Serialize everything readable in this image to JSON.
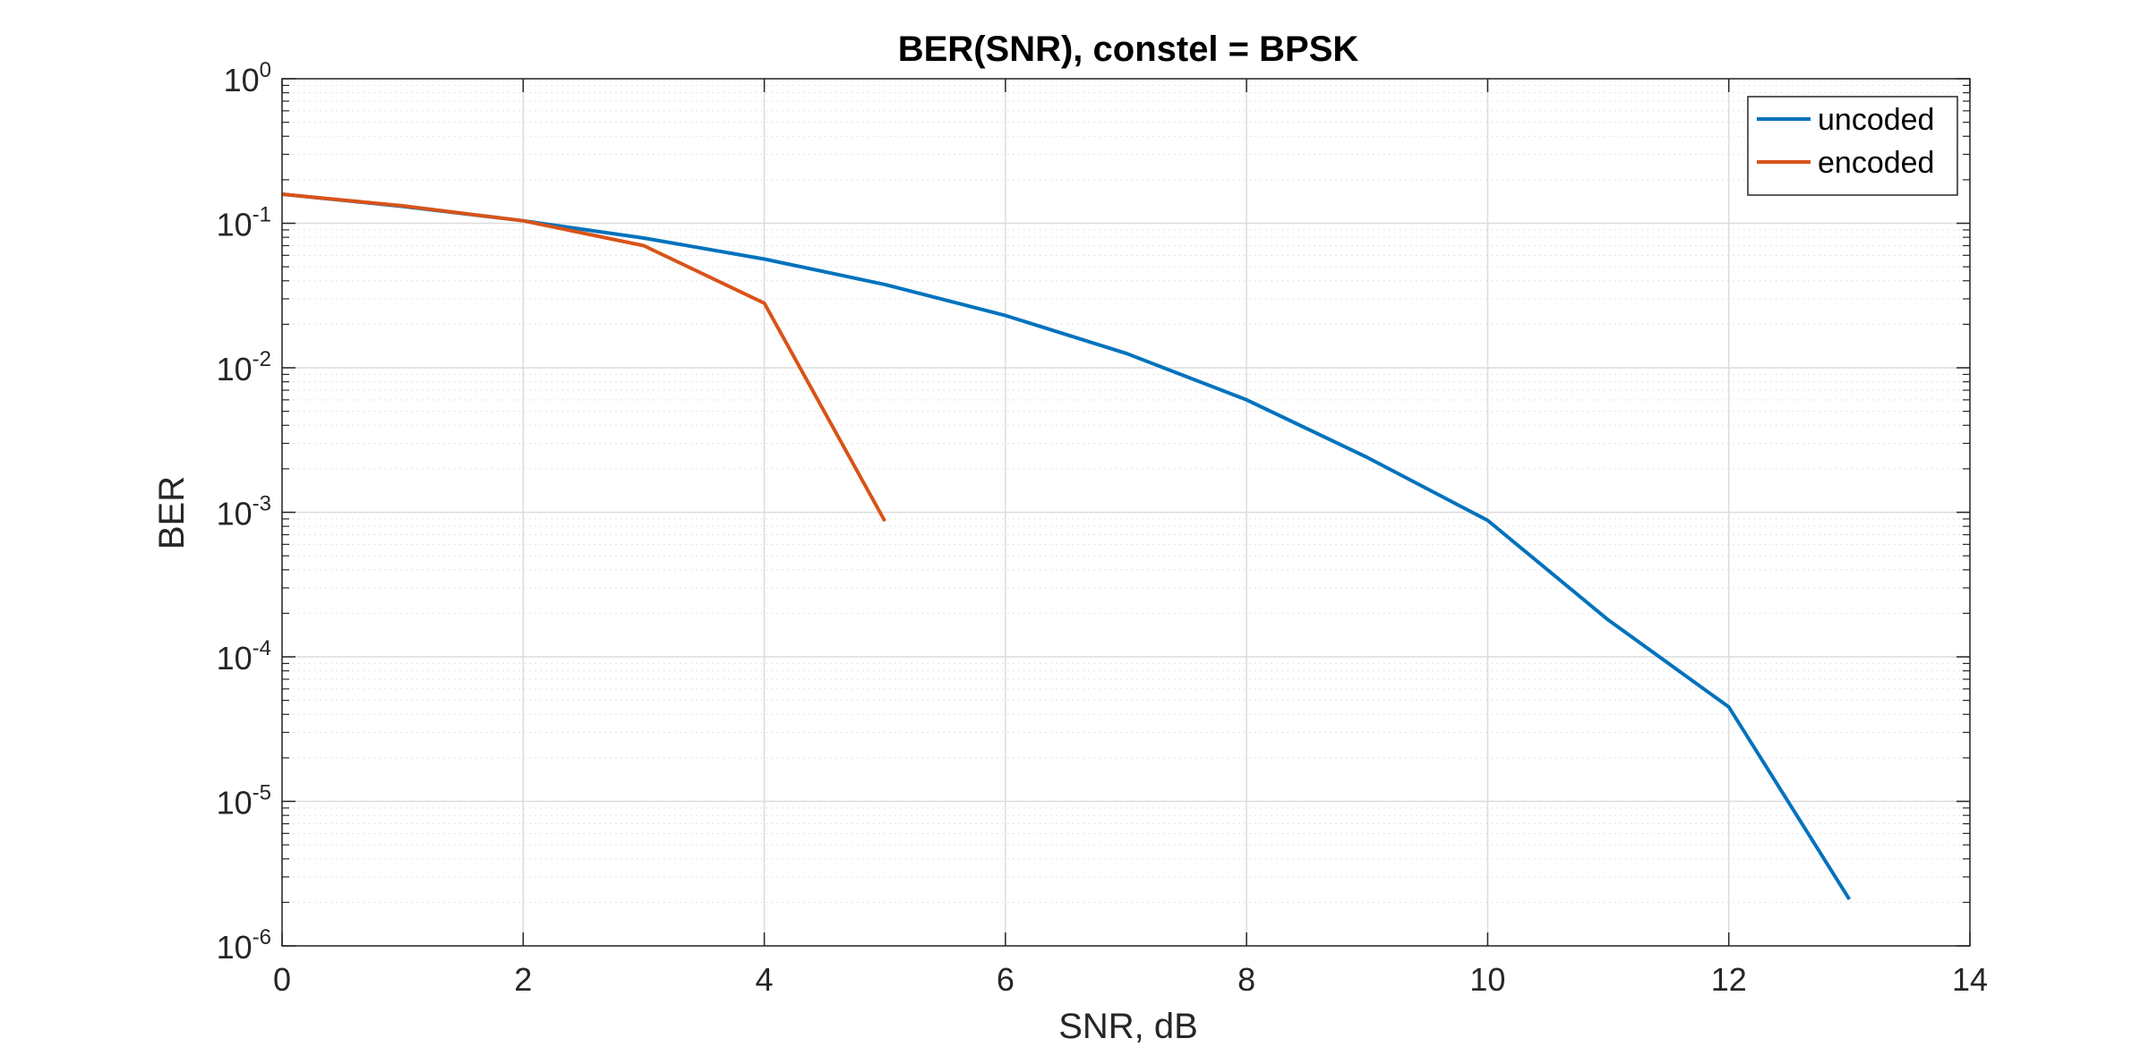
{
  "chart_data": {
    "type": "line",
    "title": "BER(SNR), constel = BPSK",
    "xlabel": "SNR, dB",
    "ylabel": "BER",
    "xlim": [
      0,
      14
    ],
    "ylim": [
      1e-06,
      1
    ],
    "yscale": "log",
    "grid": true,
    "minor_grid": true,
    "legend_position": "top-right",
    "x_ticks": [
      "0",
      "2",
      "4",
      "6",
      "8",
      "10",
      "12",
      "14"
    ],
    "y_tick_exponents": [
      "-6",
      "-5",
      "-4",
      "-3",
      "-2",
      "-1",
      "0"
    ],
    "series": [
      {
        "name": "uncoded",
        "color": "#0072BD",
        "x": [
          0,
          1,
          2,
          3,
          4,
          5,
          6,
          7,
          8,
          9,
          10,
          11,
          12,
          13
        ],
        "y": [
          0.159,
          0.131,
          0.104,
          0.079,
          0.0565,
          0.0377,
          0.023,
          0.0126,
          0.006,
          0.0024,
          0.00088,
          0.00018,
          4.5e-05,
          2.1e-06
        ]
      },
      {
        "name": "encoded",
        "color": "#D95319",
        "x": [
          0,
          1,
          2,
          3,
          4,
          5
        ],
        "y": [
          0.159,
          0.132,
          0.104,
          0.07,
          0.028,
          0.00087
        ]
      }
    ]
  }
}
